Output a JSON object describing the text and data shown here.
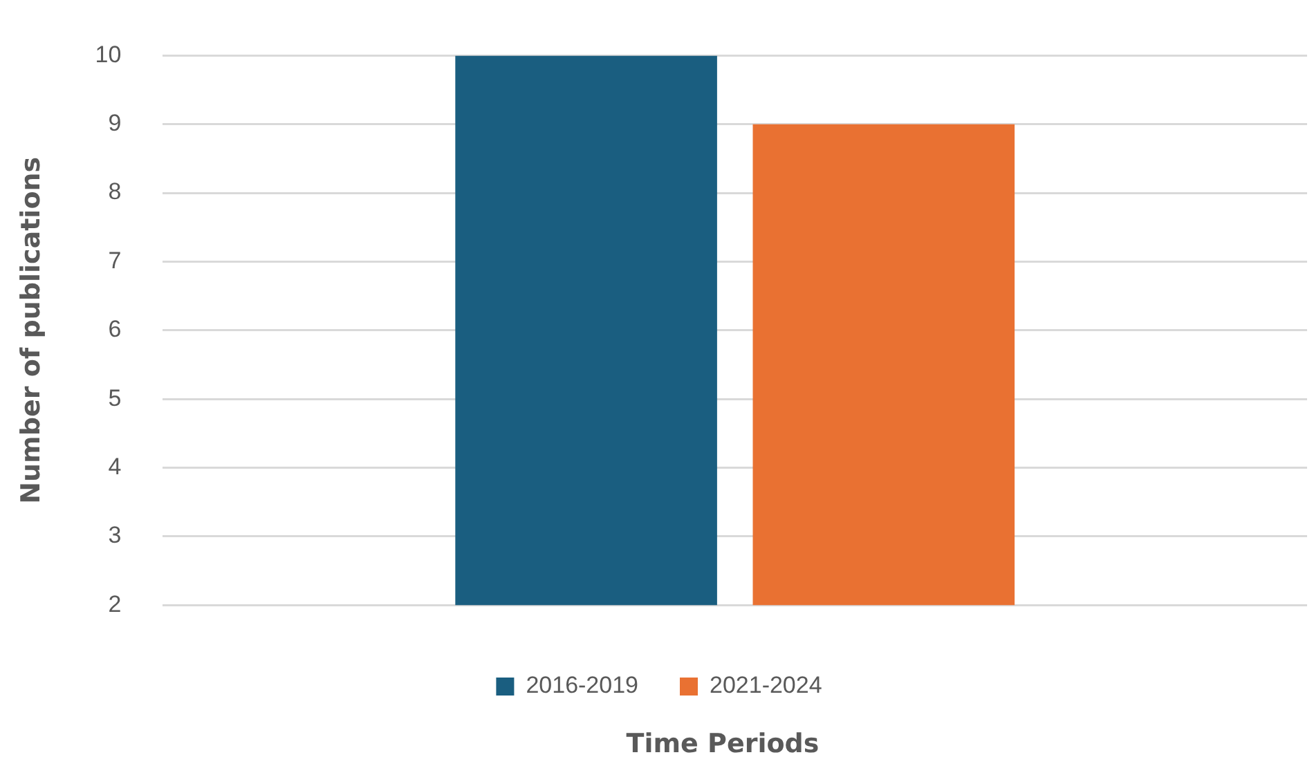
{
  "chart_data": {
    "type": "bar",
    "xlabel": "Time Periods",
    "ylabel": "Number of publications",
    "categories": [
      null
    ],
    "series": [
      {
        "name": "2016-2019",
        "color": "#1a5e80",
        "values": [
          10
        ]
      },
      {
        "name": "2021-2024",
        "color": "#e97132",
        "values": [
          9
        ]
      }
    ],
    "ylim": [
      2,
      10
    ],
    "yticks": [
      2,
      3,
      4,
      5,
      6,
      7,
      8,
      9,
      10
    ],
    "grid": "y",
    "legend": "bottom"
  }
}
